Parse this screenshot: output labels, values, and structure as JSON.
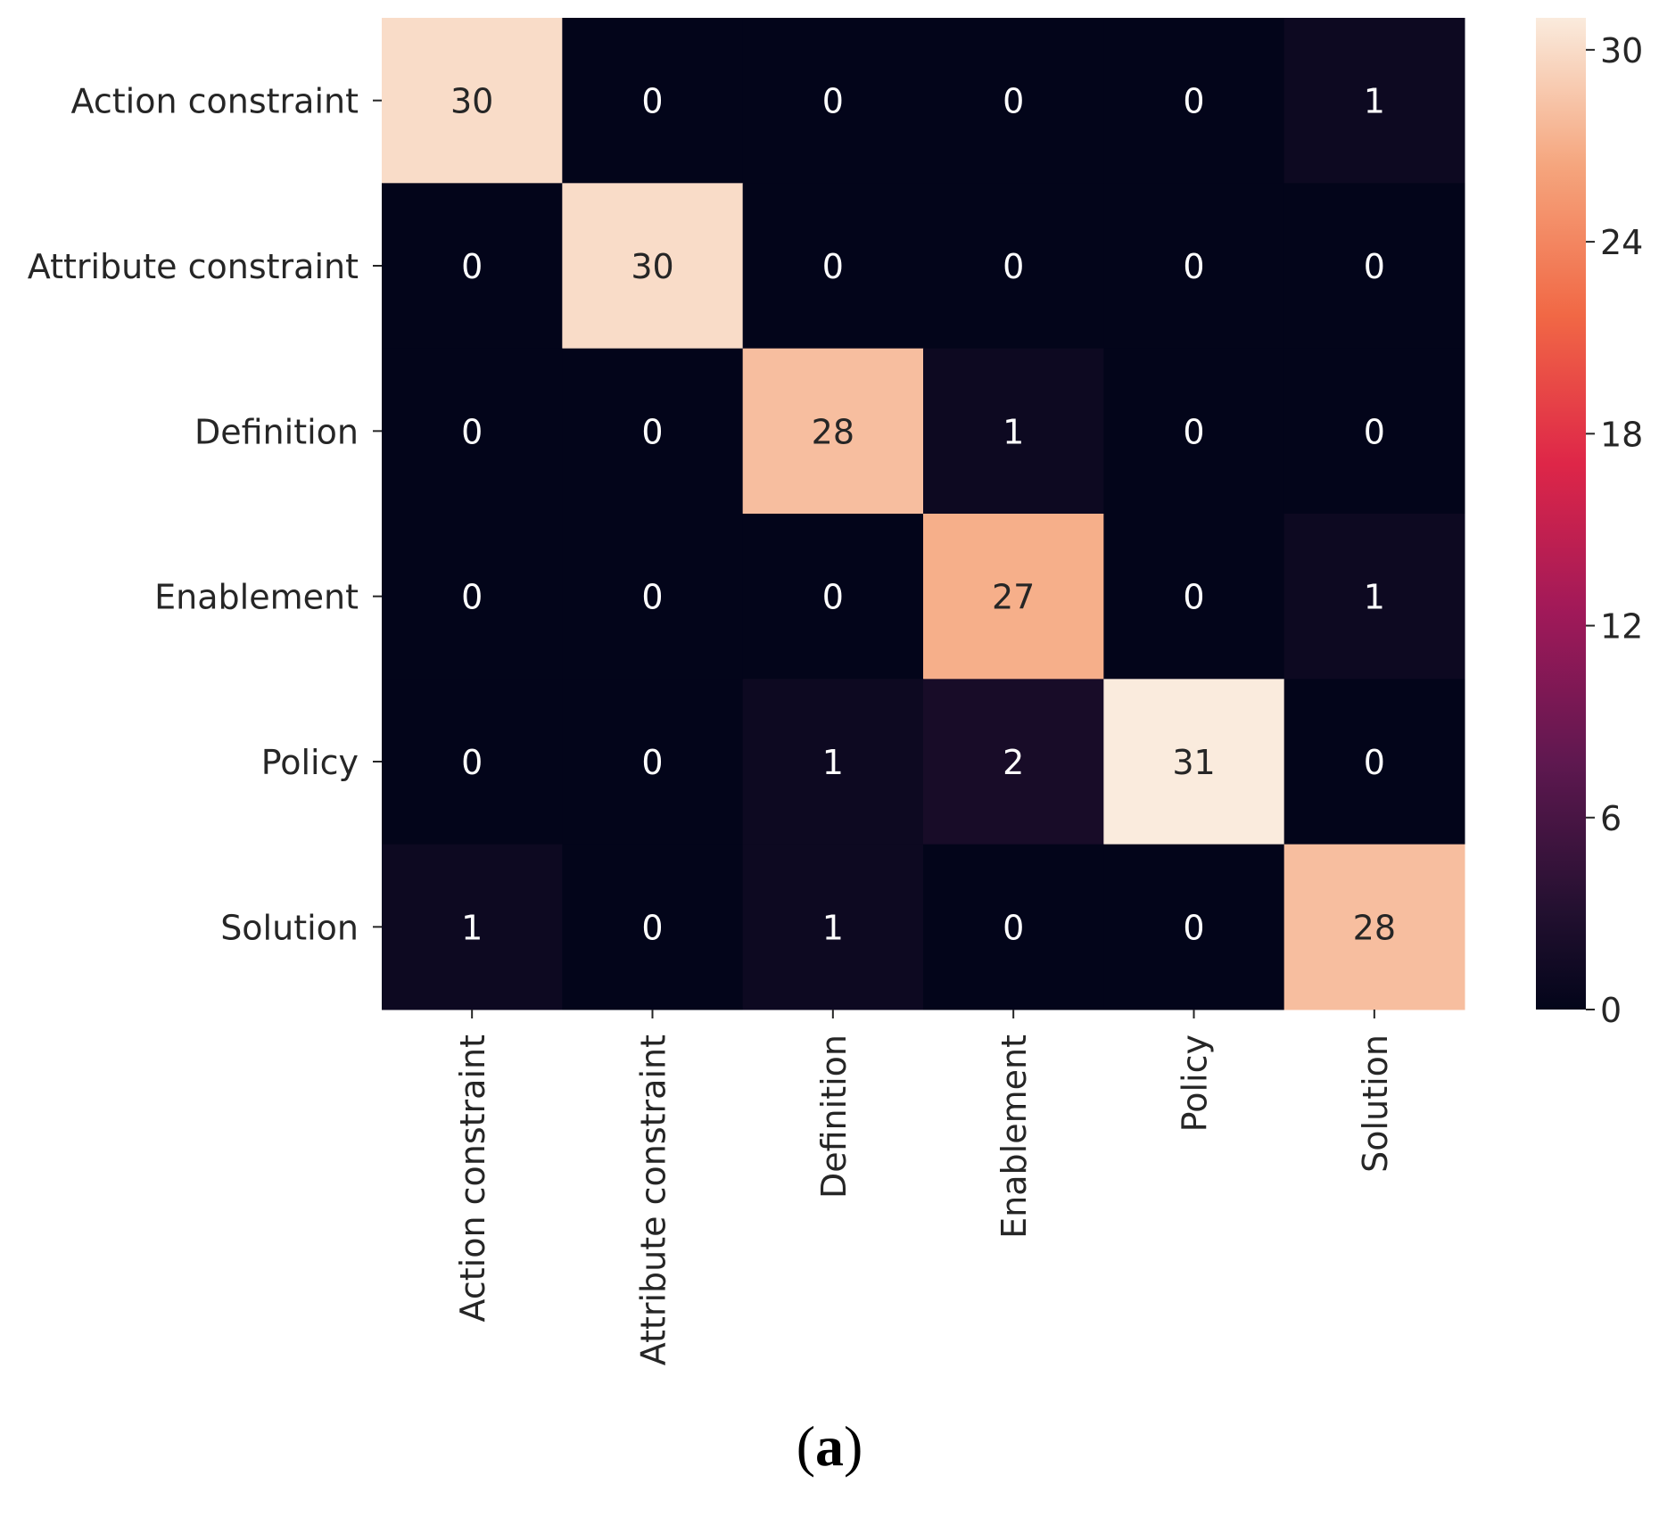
{
  "chart_data": {
    "type": "heatmap",
    "title": "",
    "xlabel": "",
    "ylabel": "",
    "row_labels": [
      "Action constraint",
      "Attribute constraint",
      "Definition",
      "Enablement",
      "Policy",
      "Solution"
    ],
    "col_labels": [
      "Action constraint",
      "Attribute constraint",
      "Definition",
      "Enablement",
      "Policy",
      "Solution"
    ],
    "values": [
      [
        30,
        0,
        0,
        0,
        0,
        1
      ],
      [
        0,
        30,
        0,
        0,
        0,
        0
      ],
      [
        0,
        0,
        28,
        1,
        0,
        0
      ],
      [
        0,
        0,
        0,
        27,
        0,
        1
      ],
      [
        0,
        0,
        1,
        2,
        31,
        0
      ],
      [
        1,
        0,
        1,
        0,
        0,
        28
      ]
    ],
    "colorbar": {
      "range": [
        0,
        31
      ],
      "ticks": [
        0,
        6,
        12,
        18,
        24,
        30
      ],
      "tick_labels": [
        "0",
        "6",
        "12",
        "18",
        "24",
        "30"
      ]
    },
    "colormap": "rocket"
  },
  "caption": {
    "open": "(",
    "letter": "a",
    "close": ")"
  }
}
